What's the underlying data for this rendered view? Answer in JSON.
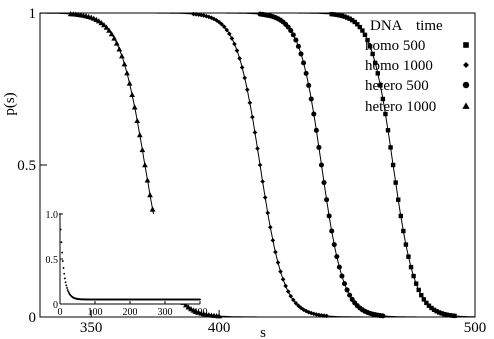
{
  "chart_data": [
    {
      "type": "line",
      "xlabel": "s",
      "ylabel": "p(s)",
      "xlim": [
        330,
        500
      ],
      "ylim": [
        0,
        1
      ],
      "xticks": [
        "350",
        "400",
        "500"
      ],
      "xtick_values": [
        350,
        400,
        500
      ],
      "yticks": [
        "0",
        "0.5",
        "1"
      ],
      "ytick_values": [
        0,
        0.5,
        1
      ],
      "grid": false,
      "legend_position": "top-right",
      "legend_header": [
        "DNA",
        "time"
      ],
      "series": [
        {
          "name": "homo 500",
          "marker": "square",
          "model": "sigmoid",
          "midpoint": 468,
          "width": 4.3
        },
        {
          "name": "homo 1000",
          "marker": "diamond",
          "model": "sigmoid",
          "midpoint": 416,
          "width": 4.6
        },
        {
          "name": "hetero 500",
          "marker": "circle",
          "model": "sigmoid",
          "midpoint": 440,
          "width": 4.3
        },
        {
          "name": "hetero 1000",
          "marker": "triangle",
          "model": "sigmoid",
          "midpoint": 371,
          "width": 5.0
        }
      ]
    },
    {
      "type": "line",
      "role": "inset",
      "xlim": [
        0,
        400
      ],
      "ylim": [
        0,
        1.0
      ],
      "xticks": [
        "0",
        "100",
        "200",
        "300",
        "400"
      ],
      "xtick_values": [
        0,
        100,
        200,
        300,
        400
      ],
      "yticks": [
        "0",
        "0.5",
        "1.0"
      ],
      "ytick_values": [
        0,
        0.5,
        1.0
      ],
      "series": [
        {
          "marker": "diamond",
          "model": "decay",
          "start": 1.0,
          "floor": 0.05,
          "scale": 10
        }
      ]
    }
  ]
}
